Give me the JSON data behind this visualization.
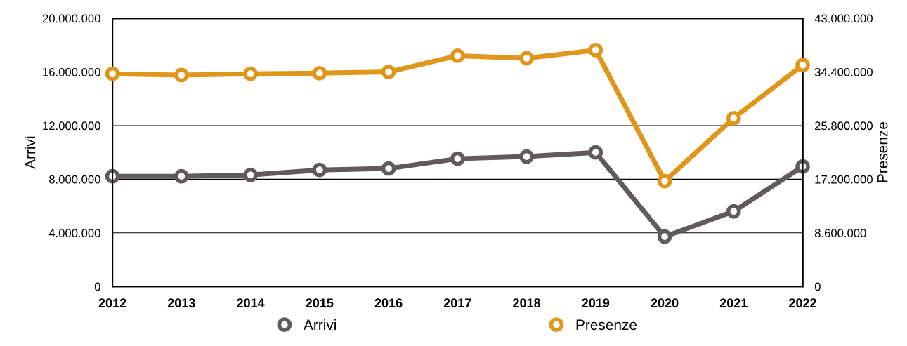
{
  "chart_data": {
    "type": "line",
    "categories": [
      "2012",
      "2013",
      "2014",
      "2015",
      "2016",
      "2017",
      "2018",
      "2019",
      "2020",
      "2021",
      "2022"
    ],
    "series": [
      {
        "name": "Arrivi",
        "color": "#5f5a5c",
        "values": [
          8220000,
          8220000,
          8320000,
          8690000,
          8800000,
          9530000,
          9690000,
          10000000,
          3720000,
          5600000,
          8950000
        ]
      },
      {
        "name": "Presenze",
        "color": "#e0961a",
        "axis": "y2",
        "values": [
          34100000,
          33900000,
          34100000,
          34200000,
          34400000,
          37000000,
          36600000,
          37900000,
          16900000,
          27000000,
          35500000
        ]
      }
    ],
    "ylabel": "Arrivi",
    "y2label": "Presenze",
    "ylim": [
      0,
      20000000
    ],
    "yticks": [
      0,
      {
        "value": 4000000,
        "label": "4.000.000"
      },
      {
        "value": 8000000,
        "label": "8.000.000"
      },
      {
        "value": 12000000,
        "label": "12.000.000"
      },
      {
        "value": 16000000,
        "label": "16.000.000"
      },
      {
        "value": 20000000,
        "label": "20.000.000"
      }
    ],
    "y2lim": [
      0,
      43000000
    ],
    "y2ticks": [
      0,
      {
        "value": 8600000,
        "label": "8.600.000"
      },
      {
        "value": 17200000,
        "label": "17.200.000"
      },
      {
        "value": 25800000,
        "label": "25.800.000"
      },
      {
        "value": 34400000,
        "label": "34.400.000"
      },
      {
        "value": 43000000,
        "label": "43.000.000"
      }
    ],
    "grid": "y",
    "legend": "bottom",
    "marker": "circle",
    "line_style": "solid"
  }
}
